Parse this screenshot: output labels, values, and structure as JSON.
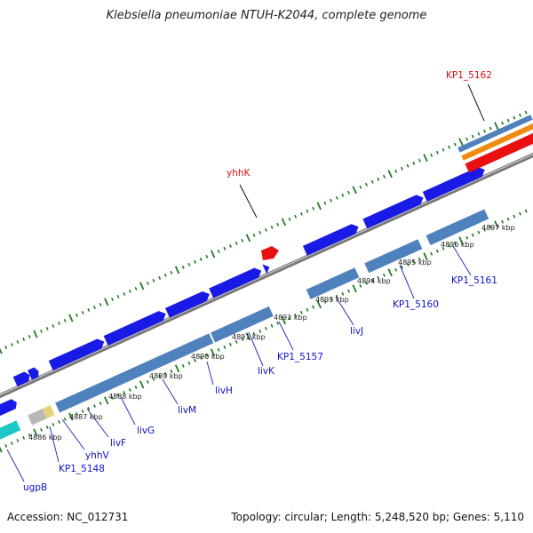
{
  "title": "Klebsiella pneumoniae NTUH-K2044, complete genome",
  "footer": {
    "accession": "Accession: NC_012731",
    "summary": "Topology: circular; Length: 5,248,520 bp; Genes: 5,110"
  },
  "colors": {
    "gene_forward": "#1a1ae6",
    "gene_reverse": "#4f81bd",
    "highlight": "#e81010",
    "orange": "#f08a10",
    "cyan": "#1ec8c8",
    "pseudo_gray": "#b8b8b8",
    "pseudo_yellow": "#e6d27a",
    "backbone": "#8a8a8a",
    "tick_green": "#1f7a1f",
    "label_blue": "#1010c8",
    "label_red": "#d01010"
  },
  "scale_labels": [
    "4886 kbp",
    "4887 kbp",
    "4888 kbp",
    "4889 kbp",
    "4890 kbp",
    "4891 kbp",
    "4892 kbp",
    "4893 kbp",
    "4894 kbp",
    "4895 kbp",
    "4896 kbp",
    "4897 kbp"
  ],
  "gene_labels": [
    {
      "text": "ugpB",
      "color": "blue"
    },
    {
      "text": "KP1_5148",
      "color": "blue"
    },
    {
      "text": "yhhV",
      "color": "blue"
    },
    {
      "text": "livF",
      "color": "blue"
    },
    {
      "text": "livG",
      "color": "blue"
    },
    {
      "text": "livM",
      "color": "blue"
    },
    {
      "text": "livH",
      "color": "blue"
    },
    {
      "text": "livK",
      "color": "blue"
    },
    {
      "text": "KP1_5157",
      "color": "blue"
    },
    {
      "text": "livJ",
      "color": "blue"
    },
    {
      "text": "KP1_5160",
      "color": "blue"
    },
    {
      "text": "KP1_5161",
      "color": "blue"
    },
    {
      "text": "yhhK",
      "color": "red"
    },
    {
      "text": "KP1_5162",
      "color": "red"
    }
  ]
}
